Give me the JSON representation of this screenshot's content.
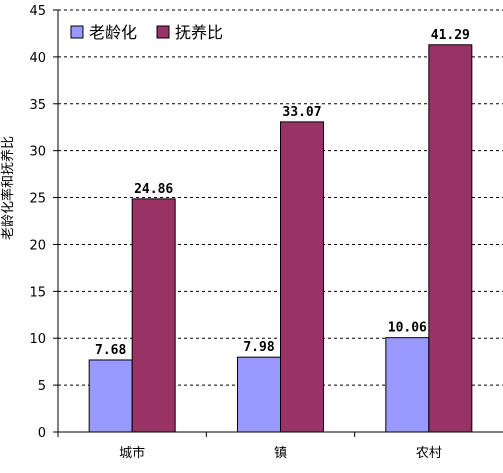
{
  "chart_data": {
    "type": "bar",
    "title": "",
    "xlabel": "",
    "ylabel": "老龄化率和抚养比",
    "ylim": [
      0,
      45
    ],
    "ytick_step": 5,
    "grid": "dashed-horizontal",
    "legend_position": "top-left",
    "categories": [
      "城市",
      "镇",
      "农村"
    ],
    "series": [
      {
        "name": "老龄化",
        "color": "#9999ff",
        "values": [
          7.68,
          7.98,
          10.06
        ],
        "labels": [
          "7.68",
          "7.98",
          "10.06"
        ]
      },
      {
        "name": "抚养比",
        "color": "#993366",
        "values": [
          24.86,
          33.07,
          41.29
        ],
        "labels": [
          "24.86",
          "33.07",
          "41.29"
        ]
      }
    ]
  }
}
